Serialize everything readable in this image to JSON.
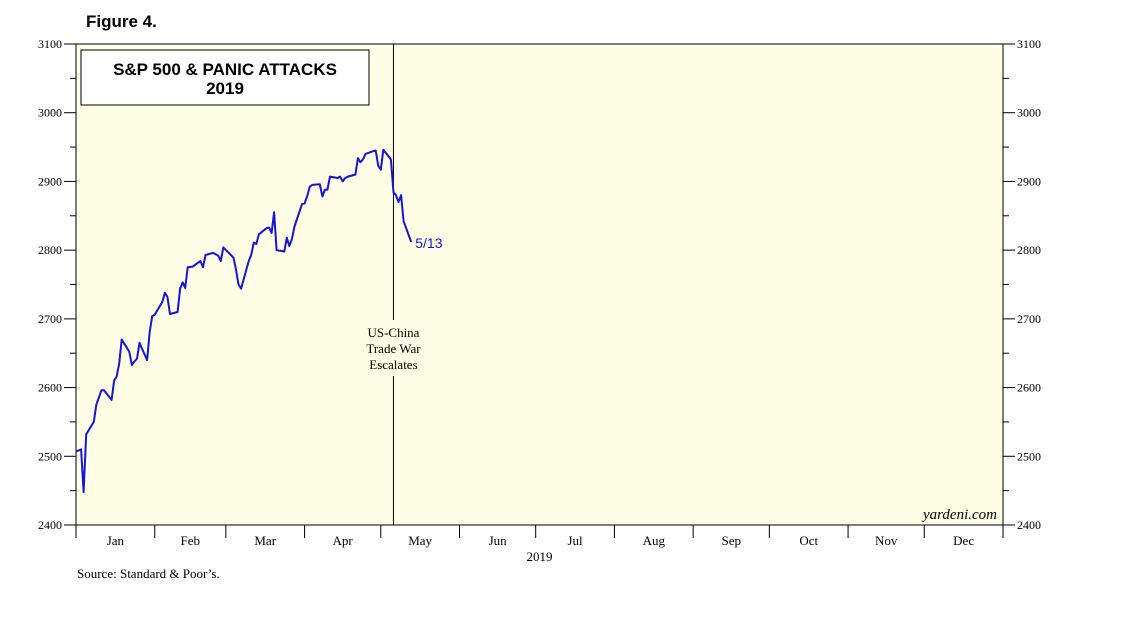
{
  "figure_label": "Figure 4.",
  "source": "Source: Standard & Poor’s.",
  "watermark": "yardeni.com",
  "chart_data": {
    "type": "line",
    "title": "S&P 500 & PANIC ATTACKS",
    "subtitle": "2019",
    "year_label": "2019",
    "months": [
      "Jan",
      "Feb",
      "Mar",
      "Apr",
      "May",
      "Jun",
      "Jul",
      "Aug",
      "Sep",
      "Oct",
      "Nov",
      "Dec"
    ],
    "ylim": [
      2400,
      3100
    ],
    "y_ticks": [
      2400,
      2500,
      2600,
      2700,
      2800,
      2900,
      3000,
      3100
    ],
    "x_range_days": [
      0,
      365
    ],
    "grid": false,
    "line_color": "#1515d6",
    "plot_background": "#fffde6",
    "end_label": "5/13",
    "annotation": {
      "day": 125,
      "lines": [
        "US-China",
        "Trade War",
        "Escalates"
      ]
    },
    "series": [
      {
        "values": [
          [
            0,
            2507
          ],
          [
            2,
            2510
          ],
          [
            3,
            2448
          ],
          [
            4,
            2532
          ],
          [
            7,
            2550
          ],
          [
            8,
            2575
          ],
          [
            10,
            2596
          ],
          [
            11,
            2596
          ],
          [
            14,
            2582
          ],
          [
            15,
            2610
          ],
          [
            16,
            2616
          ],
          [
            17,
            2635
          ],
          [
            18,
            2670
          ],
          [
            21,
            2652
          ],
          [
            22,
            2633
          ],
          [
            23,
            2638
          ],
          [
            24,
            2642
          ],
          [
            25,
            2665
          ],
          [
            28,
            2640
          ],
          [
            29,
            2681
          ],
          [
            30,
            2704
          ],
          [
            31,
            2706
          ],
          [
            34,
            2725
          ],
          [
            35,
            2738
          ],
          [
            36,
            2732
          ],
          [
            37,
            2707
          ],
          [
            40,
            2710
          ],
          [
            41,
            2744
          ],
          [
            42,
            2753
          ],
          [
            43,
            2745
          ],
          [
            44,
            2775
          ],
          [
            46,
            2776
          ],
          [
            47,
            2779
          ],
          [
            49,
            2784
          ],
          [
            50,
            2775
          ],
          [
            51,
            2793
          ],
          [
            54,
            2796
          ],
          [
            56,
            2792
          ],
          [
            57,
            2784
          ],
          [
            58,
            2804
          ],
          [
            61,
            2793
          ],
          [
            62,
            2789
          ],
          [
            63,
            2772
          ],
          [
            64,
            2750
          ],
          [
            65,
            2744
          ],
          [
            68,
            2784
          ],
          [
            69,
            2793
          ],
          [
            70,
            2811
          ],
          [
            71,
            2809
          ],
          [
            72,
            2823
          ],
          [
            75,
            2832
          ],
          [
            76,
            2833
          ],
          [
            77,
            2825
          ],
          [
            78,
            2855
          ],
          [
            79,
            2800
          ],
          [
            82,
            2798
          ],
          [
            83,
            2818
          ],
          [
            84,
            2806
          ],
          [
            85,
            2816
          ],
          [
            86,
            2834
          ],
          [
            89,
            2867
          ],
          [
            90,
            2868
          ],
          [
            91,
            2878
          ],
          [
            92,
            2892
          ],
          [
            93,
            2895
          ],
          [
            96,
            2896
          ],
          [
            97,
            2878
          ],
          [
            98,
            2888
          ],
          [
            99,
            2888
          ],
          [
            100,
            2907
          ],
          [
            103,
            2905
          ],
          [
            104,
            2907
          ],
          [
            105,
            2900
          ],
          [
            106,
            2905
          ],
          [
            107,
            2907
          ],
          [
            110,
            2910
          ],
          [
            111,
            2934
          ],
          [
            112,
            2928
          ],
          [
            113,
            2932
          ],
          [
            114,
            2940
          ],
          [
            117,
            2944
          ],
          [
            118,
            2945
          ],
          [
            119,
            2923
          ],
          [
            120,
            2917
          ],
          [
            121,
            2946
          ],
          [
            124,
            2932
          ],
          [
            125,
            2884
          ],
          [
            126,
            2880
          ],
          [
            127,
            2870
          ],
          [
            128,
            2880
          ],
          [
            129,
            2842
          ],
          [
            132,
            2812
          ]
        ]
      }
    ]
  }
}
